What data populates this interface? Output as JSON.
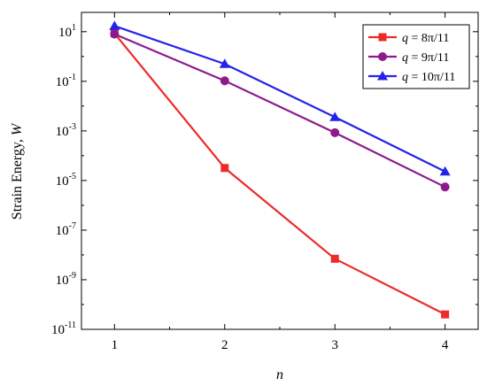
{
  "chart_data": {
    "type": "line",
    "xlabel": "n",
    "ylabel": "Strain Energy, W",
    "x": [
      1,
      2,
      3,
      4
    ],
    "xticks": [
      "1",
      "2",
      "3",
      "4"
    ],
    "xlim": [
      0.7,
      4.3
    ],
    "yscale": "log",
    "ylim": [
      1e-11,
      60
    ],
    "yticks": [
      {
        "value": 10,
        "base": "10",
        "exp": "1"
      },
      {
        "value": 0.1,
        "base": "10",
        "exp": "-1"
      },
      {
        "value": 0.001,
        "base": "10",
        "exp": "-3"
      },
      {
        "value": 1e-05,
        "base": "10",
        "exp": "-5"
      },
      {
        "value": 1e-07,
        "base": "10",
        "exp": "-7"
      },
      {
        "value": 1e-09,
        "base": "10",
        "exp": "-9"
      },
      {
        "value": 1e-11,
        "base": "10",
        "exp": "-11"
      }
    ],
    "legend_position": "top-right",
    "grid": false,
    "series": [
      {
        "name": "q = 8π/11",
        "lhs": "q",
        "rhs": " = 8π/11",
        "color": "#ee2a2a",
        "marker": "square",
        "values": [
          8.5,
          3.2e-05,
          7e-09,
          4e-11
        ]
      },
      {
        "name": "q = 9π/11",
        "lhs": "q",
        "rhs": " = 9π/11",
        "color": "#8e1a8e",
        "marker": "circle",
        "values": [
          8.0,
          0.105,
          0.00085,
          5.5e-06
        ]
      },
      {
        "name": "q = 10π/11",
        "lhs": "q",
        "rhs": " = 10π/11",
        "color": "#2424e8",
        "marker": "triangle",
        "values": [
          17,
          0.5,
          0.0036,
          2.3e-05
        ]
      }
    ]
  }
}
